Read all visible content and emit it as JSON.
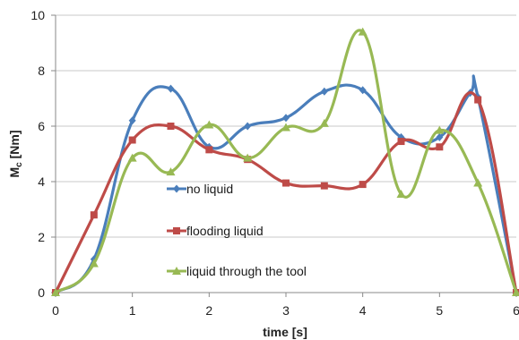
{
  "chart_data": {
    "type": "line",
    "xlabel": "time [s]",
    "ylabel": "Mc [Nm]",
    "ylabel_main": "M",
    "ylabel_sub": "c",
    "ylabel_unit": " [Nm]",
    "xlim": [
      0,
      6
    ],
    "ylim": [
      0,
      10
    ],
    "x_ticks": [
      "0",
      "1",
      "2",
      "3",
      "4",
      "5",
      "6"
    ],
    "y_ticks": [
      "0",
      "2",
      "4",
      "6",
      "8",
      "10"
    ],
    "grid": "horizontal",
    "smoothed": true,
    "legend_position": "inside-lower-center",
    "series": [
      {
        "name": "no liquid",
        "color": "#4a7ebb",
        "marker": "diamond",
        "x": [
          0,
          0.5,
          1,
          1.5,
          2,
          2.5,
          3,
          3.5,
          4,
          4.5,
          5,
          5.4,
          5.5,
          6
        ],
        "y": [
          0,
          1.2,
          6.2,
          7.35,
          5.25,
          6.0,
          6.3,
          7.25,
          7.3,
          5.6,
          5.6,
          7.2,
          7.05,
          0
        ]
      },
      {
        "name": "flooding liquid",
        "color": "#be4b48",
        "marker": "square",
        "x": [
          0,
          0.5,
          1,
          1.5,
          2,
          2.5,
          3,
          3.5,
          4,
          4.5,
          5,
          5.5,
          6
        ],
        "y": [
          0,
          2.8,
          5.5,
          6.0,
          5.15,
          4.8,
          3.95,
          3.85,
          3.9,
          5.45,
          5.25,
          6.95,
          0
        ]
      },
      {
        "name": "liquid through the tool",
        "color": "#98b954",
        "marker": "triangle",
        "x": [
          0,
          0.5,
          1,
          1.5,
          2,
          2.5,
          3,
          3.5,
          4,
          4.5,
          5,
          5.5,
          6
        ],
        "y": [
          0,
          1.05,
          4.85,
          4.35,
          6.05,
          4.85,
          5.95,
          6.1,
          9.4,
          3.55,
          5.85,
          3.95,
          0
        ]
      }
    ]
  }
}
